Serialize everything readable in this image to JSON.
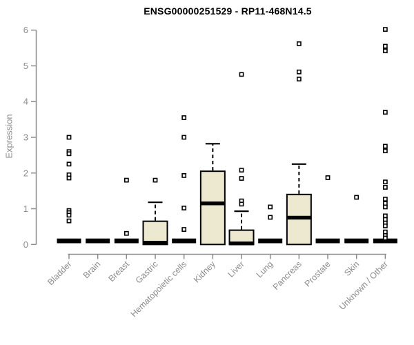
{
  "page": {
    "background": "#ffffff"
  },
  "chart_data": {
    "type": "boxplot",
    "title": "ENSG00000251529 - RP11-468N14.5",
    "ylabel": "Expression",
    "xlabel": "",
    "ylim": [
      0,
      6
    ],
    "yticks": [
      0,
      1,
      2,
      3,
      4,
      5,
      6
    ],
    "grid": false,
    "legend": null,
    "colors": {
      "box_fill": "#EDE8D0",
      "box_stroke": "#000000",
      "median": "#000000",
      "axis": "#8C8C8C",
      "title": "#000000",
      "outlier_fill": "#FFFFFF",
      "outlier_stroke": "#000000"
    },
    "categories": [
      "Bladder",
      "Brain",
      "Breast",
      "Gastric",
      "Hematopoietic cells",
      "Kidney",
      "Liver",
      "Lung",
      "Pancreas",
      "Prostate",
      "Skin",
      "Unknown / Other"
    ],
    "series": [
      {
        "name": "Bladder",
        "median": 0,
        "q1": 0,
        "q3": 0,
        "whisker_low": 0,
        "whisker_high": 0,
        "outliers": [
          3.0,
          2.6,
          2.54,
          2.25,
          1.95,
          1.86,
          0.95,
          0.89,
          0.82,
          0.66
        ]
      },
      {
        "name": "Brain",
        "median": 0,
        "q1": 0,
        "q3": 0,
        "whisker_low": 0,
        "whisker_high": 0,
        "outliers": []
      },
      {
        "name": "Breast",
        "median": 0,
        "q1": 0,
        "q3": 0,
        "whisker_low": 0,
        "whisker_high": 0,
        "outliers": [
          1.8,
          0.31
        ]
      },
      {
        "name": "Gastric",
        "median": 0.05,
        "q1": 0,
        "q3": 0.65,
        "whisker_low": 0,
        "whisker_high": 1.18,
        "outliers": [
          1.8
        ]
      },
      {
        "name": "Hematopoietic cells",
        "median": 0,
        "q1": 0,
        "q3": 0,
        "whisker_low": 0,
        "whisker_high": 0,
        "outliers": [
          3.55,
          3.0,
          1.93,
          1.02,
          0.42
        ]
      },
      {
        "name": "Kidney",
        "median": 1.15,
        "q1": 0,
        "q3": 2.05,
        "whisker_low": 0,
        "whisker_high": 2.82,
        "outliers": []
      },
      {
        "name": "Liver",
        "median": 0.03,
        "q1": 0,
        "q3": 0.4,
        "whisker_low": 0,
        "whisker_high": 0.93,
        "outliers": [
          4.76,
          2.08,
          1.85,
          1.22,
          1.13
        ]
      },
      {
        "name": "Lung",
        "median": 0,
        "q1": 0,
        "q3": 0,
        "whisker_low": 0,
        "whisker_high": 0,
        "outliers": [
          1.05,
          0.76
        ]
      },
      {
        "name": "Pancreas",
        "median": 0.75,
        "q1": 0,
        "q3": 1.4,
        "whisker_low": 0,
        "whisker_high": 2.25,
        "outliers": [
          5.62,
          4.83,
          4.63
        ]
      },
      {
        "name": "Prostate",
        "median": 0,
        "q1": 0,
        "q3": 0,
        "whisker_low": 0,
        "whisker_high": 0,
        "outliers": [
          1.87
        ]
      },
      {
        "name": "Skin",
        "median": 0,
        "q1": 0,
        "q3": 0,
        "whisker_low": 0,
        "whisker_high": 0,
        "outliers": [
          1.32
        ]
      },
      {
        "name": "Unknown / Other",
        "median": 0,
        "q1": 0,
        "q3": 0,
        "whisker_low": 0,
        "whisker_high": 0,
        "outliers": [
          6.02,
          5.55,
          5.42,
          3.7,
          2.75,
          2.62,
          1.75,
          1.6,
          1.27,
          1.15,
          1.05,
          0.8,
          0.7,
          0.6,
          0.52,
          0.35,
          0.25,
          0.18
        ]
      }
    ]
  }
}
